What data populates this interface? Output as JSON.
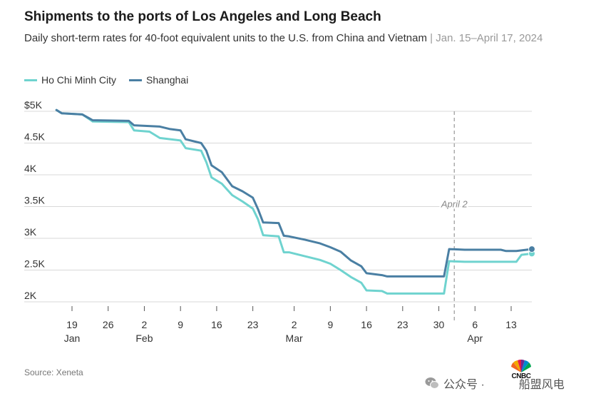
{
  "title": "Shipments to the ports of Los Angeles and Long Beach",
  "subtitle": "Daily short-term rates for 40-foot equivalent units to the U.S. from China and Vietnam",
  "subtitle_dates": "| Jan. 15–April 17, 2024",
  "source": "Source: Xeneta",
  "watermark": {
    "icon": "wechat-icon",
    "text_left": "公众号 ·",
    "text_right": "船盟风电"
  },
  "logo_text": "CNBC",
  "colors": {
    "ho_chi_minh_city": "#6fd3cf",
    "shanghai": "#4a7fa3",
    "grid": "#d9d9d9",
    "annotation": "#aaaaaa"
  },
  "chart_data": {
    "type": "line",
    "xlabel": "",
    "ylabel": "",
    "ylim": [
      2000,
      5000
    ],
    "yticks": [
      {
        "value": 2000,
        "label": "2K"
      },
      {
        "value": 2500,
        "label": "2.5K"
      },
      {
        "value": 3000,
        "label": "3K"
      },
      {
        "value": 3500,
        "label": "3.5K"
      },
      {
        "value": 4000,
        "label": "4K"
      },
      {
        "value": 4500,
        "label": "4.5K"
      },
      {
        "value": 5000,
        "label": "$5K"
      }
    ],
    "xlim": [
      "2024-01-15",
      "2024-04-17"
    ],
    "xticks": [
      {
        "date": "2024-01-19",
        "label": "19",
        "month": "Jan"
      },
      {
        "date": "2024-01-26",
        "label": "26",
        "month": ""
      },
      {
        "date": "2024-02-02",
        "label": "2",
        "month": "Feb"
      },
      {
        "date": "2024-02-09",
        "label": "9",
        "month": ""
      },
      {
        "date": "2024-02-16",
        "label": "16",
        "month": ""
      },
      {
        "date": "2024-02-23",
        "label": "23",
        "month": ""
      },
      {
        "date": "2024-03-02",
        "label": "2",
        "month": "Mar"
      },
      {
        "date": "2024-03-09",
        "label": "9",
        "month": ""
      },
      {
        "date": "2024-03-16",
        "label": "16",
        "month": ""
      },
      {
        "date": "2024-03-23",
        "label": "23",
        "month": ""
      },
      {
        "date": "2024-03-30",
        "label": "30",
        "month": ""
      },
      {
        "date": "2024-04-06",
        "label": "6",
        "month": "Apr"
      },
      {
        "date": "2024-04-13",
        "label": "13",
        "month": ""
      }
    ],
    "grid": true,
    "legend": "top-left",
    "annotations": [
      {
        "date": "2024-04-02",
        "label": "April 2",
        "style": "dashed-vertical"
      }
    ],
    "series": [
      {
        "name": "Ho Chi Minh City",
        "color": "#6fd3cf",
        "points": [
          [
            "2024-01-16",
            5020
          ],
          [
            "2024-01-17",
            4970
          ],
          [
            "2024-01-21",
            4950
          ],
          [
            "2024-01-23",
            4840
          ],
          [
            "2024-01-30",
            4830
          ],
          [
            "2024-01-31",
            4700
          ],
          [
            "2024-02-03",
            4680
          ],
          [
            "2024-02-05",
            4580
          ],
          [
            "2024-02-09",
            4540
          ],
          [
            "2024-02-10",
            4420
          ],
          [
            "2024-02-13",
            4380
          ],
          [
            "2024-02-14",
            4200
          ],
          [
            "2024-02-15",
            3960
          ],
          [
            "2024-02-17",
            3860
          ],
          [
            "2024-02-19",
            3680
          ],
          [
            "2024-02-21",
            3580
          ],
          [
            "2024-02-23",
            3470
          ],
          [
            "2024-02-24",
            3300
          ],
          [
            "2024-02-25",
            3050
          ],
          [
            "2024-02-28",
            3030
          ],
          [
            "2024-02-29",
            2780
          ],
          [
            "2024-03-01",
            2780
          ],
          [
            "2024-03-04",
            2720
          ],
          [
            "2024-03-07",
            2660
          ],
          [
            "2024-03-09",
            2600
          ],
          [
            "2024-03-11",
            2500
          ],
          [
            "2024-03-13",
            2390
          ],
          [
            "2024-03-15",
            2300
          ],
          [
            "2024-03-16",
            2180
          ],
          [
            "2024-03-19",
            2170
          ],
          [
            "2024-03-20",
            2130
          ],
          [
            "2024-03-31",
            2130
          ],
          [
            "2024-04-01",
            2640
          ],
          [
            "2024-04-04",
            2630
          ],
          [
            "2024-04-14",
            2630
          ],
          [
            "2024-04-15",
            2740
          ],
          [
            "2024-04-17",
            2760
          ]
        ]
      },
      {
        "name": "Shanghai",
        "color": "#4a7fa3",
        "points": [
          [
            "2024-01-16",
            5020
          ],
          [
            "2024-01-17",
            4970
          ],
          [
            "2024-01-21",
            4950
          ],
          [
            "2024-01-23",
            4860
          ],
          [
            "2024-01-30",
            4850
          ],
          [
            "2024-01-31",
            4780
          ],
          [
            "2024-02-05",
            4760
          ],
          [
            "2024-02-07",
            4720
          ],
          [
            "2024-02-09",
            4700
          ],
          [
            "2024-02-10",
            4560
          ],
          [
            "2024-02-13",
            4500
          ],
          [
            "2024-02-14",
            4380
          ],
          [
            "2024-02-15",
            4150
          ],
          [
            "2024-02-17",
            4040
          ],
          [
            "2024-02-19",
            3820
          ],
          [
            "2024-02-21",
            3740
          ],
          [
            "2024-02-23",
            3640
          ],
          [
            "2024-02-24",
            3460
          ],
          [
            "2024-02-25",
            3250
          ],
          [
            "2024-02-28",
            3240
          ],
          [
            "2024-02-29",
            3040
          ],
          [
            "2024-03-01",
            3030
          ],
          [
            "2024-03-04",
            2980
          ],
          [
            "2024-03-07",
            2920
          ],
          [
            "2024-03-09",
            2860
          ],
          [
            "2024-03-11",
            2790
          ],
          [
            "2024-03-13",
            2650
          ],
          [
            "2024-03-15",
            2560
          ],
          [
            "2024-03-16",
            2450
          ],
          [
            "2024-03-19",
            2420
          ],
          [
            "2024-03-20",
            2400
          ],
          [
            "2024-03-31",
            2400
          ],
          [
            "2024-04-01",
            2830
          ],
          [
            "2024-04-04",
            2820
          ],
          [
            "2024-04-11",
            2820
          ],
          [
            "2024-04-12",
            2800
          ],
          [
            "2024-04-14",
            2800
          ],
          [
            "2024-04-17",
            2830
          ]
        ]
      }
    ]
  }
}
